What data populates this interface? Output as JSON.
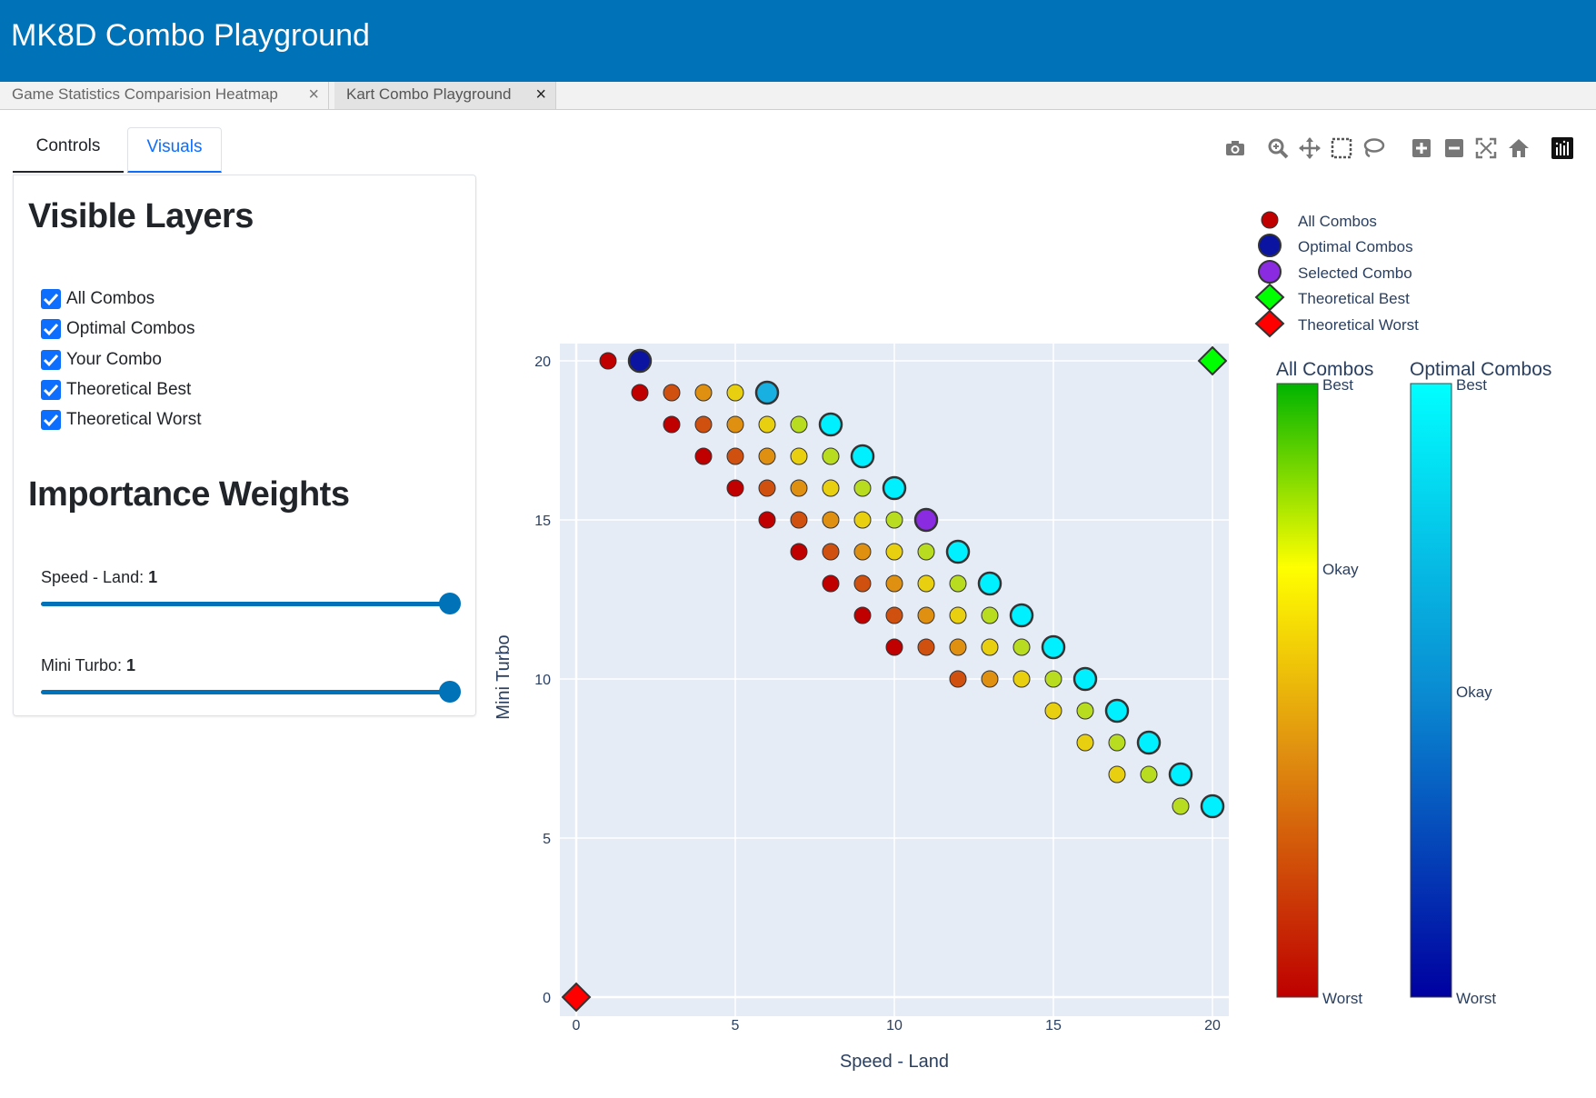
{
  "app": {
    "title": "MK8D Combo Playground"
  },
  "tabs": [
    {
      "label": "Game Statistics Comparision Heatmap",
      "close": "×"
    },
    {
      "label": "Kart Combo Playground",
      "close": "×"
    }
  ],
  "control_tabs": {
    "controls": "Controls",
    "visuals": "Visuals"
  },
  "panel": {
    "visible_layers_heading": "Visible Layers",
    "layers": [
      {
        "label": "All Combos",
        "checked": true
      },
      {
        "label": "Optimal Combos",
        "checked": true
      },
      {
        "label": "Your Combo",
        "checked": true
      },
      {
        "label": "Theoretical Best",
        "checked": true
      },
      {
        "label": "Theoretical Worst",
        "checked": true
      }
    ],
    "weights_heading": "Importance Weights",
    "sliders": [
      {
        "label": "Speed - Land: ",
        "value": "1",
        "fraction": 1.0
      },
      {
        "label": "Mini Turbo: ",
        "value": "1",
        "fraction": 1.0
      }
    ]
  },
  "modebar_icons": [
    "camera-icon",
    "zoom-icon",
    "pan-icon",
    "box-select-icon",
    "lasso-icon",
    "zoom-in-icon",
    "zoom-out-icon",
    "autoscale-icon",
    "reset-axes-icon",
    "plotly-logo-icon"
  ],
  "colors": {
    "header": "#0072B8",
    "plot_bg": "#E5ECF6",
    "accent": "#0d6efd"
  },
  "chart_data": {
    "type": "scatter",
    "xlabel": "Speed - Land",
    "ylabel": "Mini Turbo",
    "xlim": [
      -0.5,
      20.5
    ],
    "ylim": [
      -0.5,
      20.5
    ],
    "xticks": [
      "0",
      "5",
      "10",
      "15",
      "20"
    ],
    "yticks": [
      "0",
      "5",
      "10",
      "15",
      "20"
    ],
    "grid": true,
    "legend": {
      "placement": "top-right",
      "entries": [
        "All Combos",
        "Optimal Combos",
        "Selected Combo",
        "Theoretical Best",
        "Theoretical Worst"
      ]
    },
    "colorbars": [
      {
        "title": "All Combos",
        "top": "Best",
        "middle": "Okay",
        "bottom": "Worst",
        "colors": [
          "#00B400",
          "#FFFF00",
          "#BE0000"
        ]
      },
      {
        "title": "Optimal Combos",
        "top": "Best",
        "middle": "Okay",
        "bottom": "Worst",
        "colors": [
          "#00FFFF",
          "#0A8CD2",
          "#0000A0"
        ]
      }
    ],
    "series": [
      {
        "name": "All Combos",
        "points": [
          [
            1,
            20,
            "#C00000"
          ],
          [
            2,
            19,
            "#C00000"
          ],
          [
            3,
            19,
            "#D05010"
          ],
          [
            4,
            19,
            "#E09010"
          ],
          [
            5,
            19,
            "#E8D010"
          ],
          [
            3,
            18,
            "#C00000"
          ],
          [
            4,
            18,
            "#D05010"
          ],
          [
            5,
            18,
            "#E09010"
          ],
          [
            6,
            18,
            "#E8D010"
          ],
          [
            7,
            18,
            "#B8DC20"
          ],
          [
            4,
            17,
            "#C00000"
          ],
          [
            5,
            17,
            "#D05010"
          ],
          [
            6,
            17,
            "#E09010"
          ],
          [
            7,
            17,
            "#E8D010"
          ],
          [
            8,
            17,
            "#B8DC20"
          ],
          [
            5,
            16,
            "#C00000"
          ],
          [
            6,
            16,
            "#D05010"
          ],
          [
            7,
            16,
            "#E09010"
          ],
          [
            8,
            16,
            "#E8D010"
          ],
          [
            9,
            16,
            "#B8DC20"
          ],
          [
            6,
            15,
            "#C00000"
          ],
          [
            7,
            15,
            "#D05010"
          ],
          [
            8,
            15,
            "#E09010"
          ],
          [
            9,
            15,
            "#E8D010"
          ],
          [
            10,
            15,
            "#B8DC20"
          ],
          [
            7,
            14,
            "#C00000"
          ],
          [
            8,
            14,
            "#D05010"
          ],
          [
            9,
            14,
            "#E09010"
          ],
          [
            10,
            14,
            "#E8D010"
          ],
          [
            11,
            14,
            "#B8DC20"
          ],
          [
            8,
            13,
            "#C00000"
          ],
          [
            9,
            13,
            "#D05010"
          ],
          [
            10,
            13,
            "#E09010"
          ],
          [
            11,
            13,
            "#E8D010"
          ],
          [
            12,
            13,
            "#B8DC20"
          ],
          [
            9,
            12,
            "#C00000"
          ],
          [
            10,
            12,
            "#D05010"
          ],
          [
            11,
            12,
            "#E09010"
          ],
          [
            12,
            12,
            "#E8D010"
          ],
          [
            13,
            12,
            "#B8DC20"
          ],
          [
            10,
            11,
            "#C00000"
          ],
          [
            11,
            11,
            "#D05010"
          ],
          [
            12,
            11,
            "#E09010"
          ],
          [
            13,
            11,
            "#E8D010"
          ],
          [
            14,
            11,
            "#B8DC20"
          ],
          [
            12,
            10,
            "#D05010"
          ],
          [
            13,
            10,
            "#E09010"
          ],
          [
            14,
            10,
            "#E8D010"
          ],
          [
            15,
            10,
            "#B8DC20"
          ],
          [
            15,
            9,
            "#E8D010"
          ],
          [
            16,
            9,
            "#B8DC20"
          ],
          [
            16,
            8,
            "#E8D010"
          ],
          [
            17,
            8,
            "#B8DC20"
          ],
          [
            17,
            7,
            "#E8D010"
          ],
          [
            18,
            7,
            "#B8DC20"
          ],
          [
            19,
            6,
            "#B8DC20"
          ]
        ]
      },
      {
        "name": "Optimal Combos",
        "points": [
          [
            2,
            20,
            "#0A14A0"
          ],
          [
            6,
            19,
            "#18B0E0"
          ],
          [
            8,
            18,
            "#00F0FF"
          ],
          [
            9,
            17,
            "#00F0FF"
          ],
          [
            10,
            16,
            "#00F0FF"
          ],
          [
            12,
            14,
            "#00F0FF"
          ],
          [
            13,
            13,
            "#00F0FF"
          ],
          [
            14,
            12,
            "#00F0FF"
          ],
          [
            15,
            11,
            "#00F0FF"
          ],
          [
            16,
            10,
            "#00F0FF"
          ],
          [
            17,
            9,
            "#00F0FF"
          ],
          [
            18,
            8,
            "#00F0FF"
          ],
          [
            19,
            7,
            "#00F0FF"
          ],
          [
            20,
            6,
            "#00F0FF"
          ]
        ]
      },
      {
        "name": "Selected Combo",
        "points": [
          [
            11,
            15,
            "#8A2BE2"
          ]
        ]
      },
      {
        "name": "Theoretical Best",
        "points": [
          [
            20,
            20,
            "#00FF00"
          ]
        ]
      },
      {
        "name": "Theoretical Worst",
        "points": [
          [
            0,
            0,
            "#FF0000"
          ]
        ]
      }
    ]
  }
}
